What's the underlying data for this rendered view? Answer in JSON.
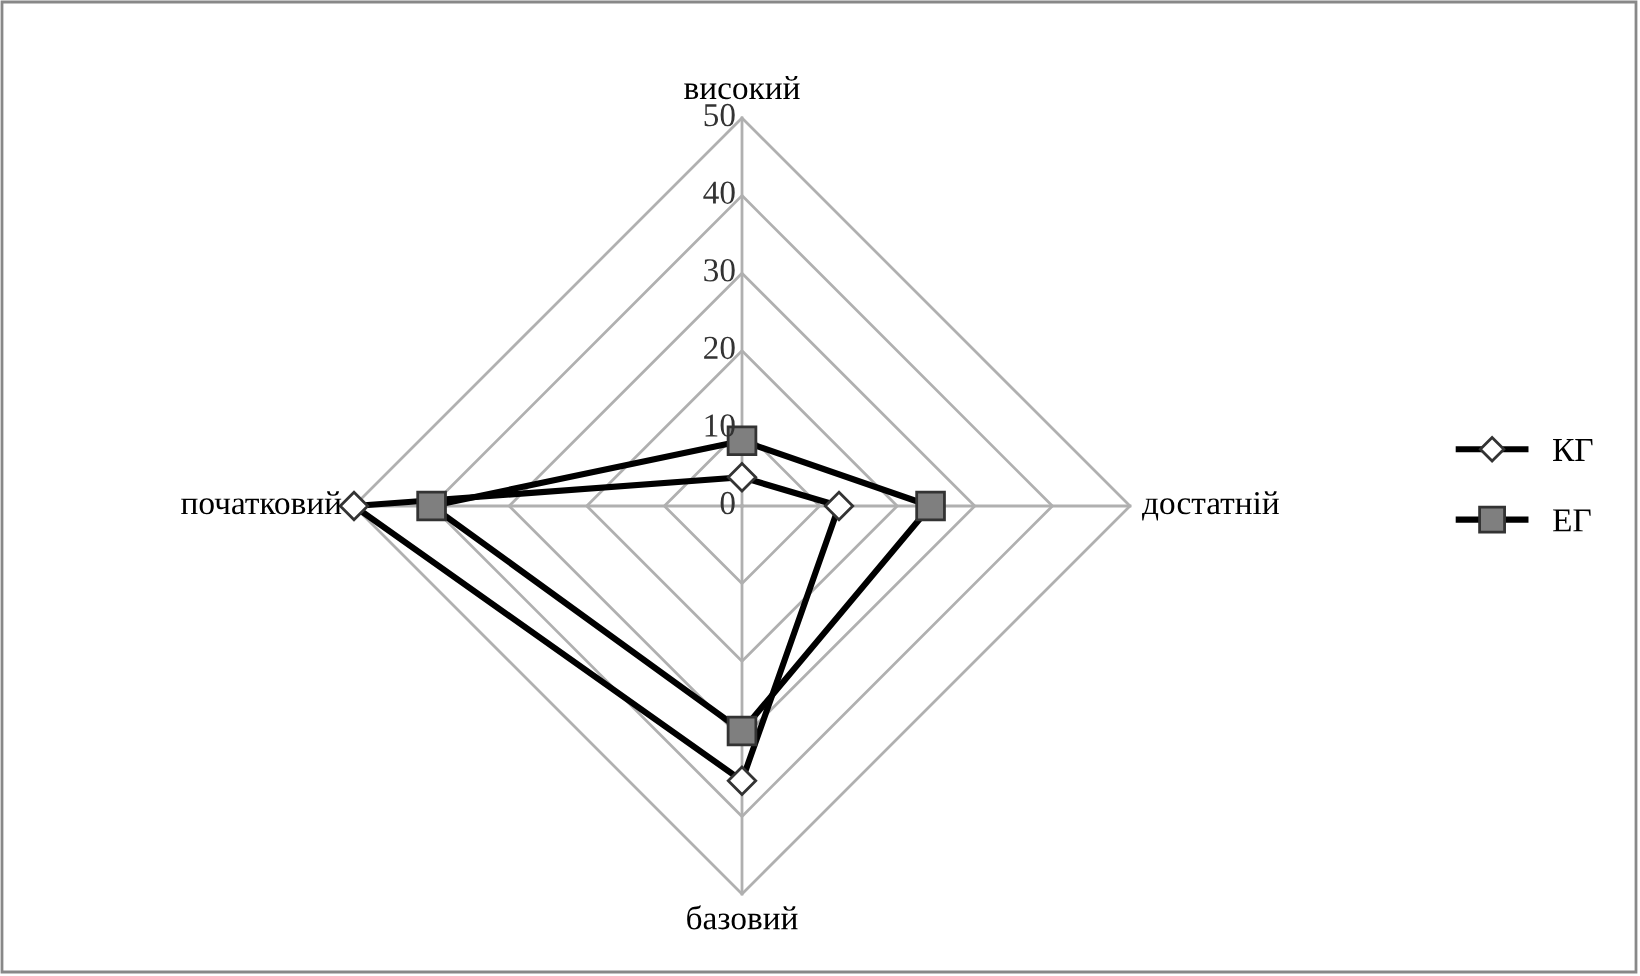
{
  "chart_data": {
    "type": "radar",
    "categories": [
      "високий",
      "достатній",
      "базовий",
      "початковий"
    ],
    "series": [
      {
        "name": "КГ",
        "color": "#000000",
        "values": [
          3.7,
          12.5,
          35.4,
          50
        ],
        "marker": "diamond"
      },
      {
        "name": "ЕГ",
        "color": "#000000",
        "values": [
          8.4,
          24.3,
          29,
          40
        ],
        "marker": "square"
      }
    ],
    "ylim": [
      0,
      50
    ],
    "yticks": [
      0,
      10,
      20,
      30,
      40,
      50
    ],
    "grid": true,
    "legend": "right"
  }
}
